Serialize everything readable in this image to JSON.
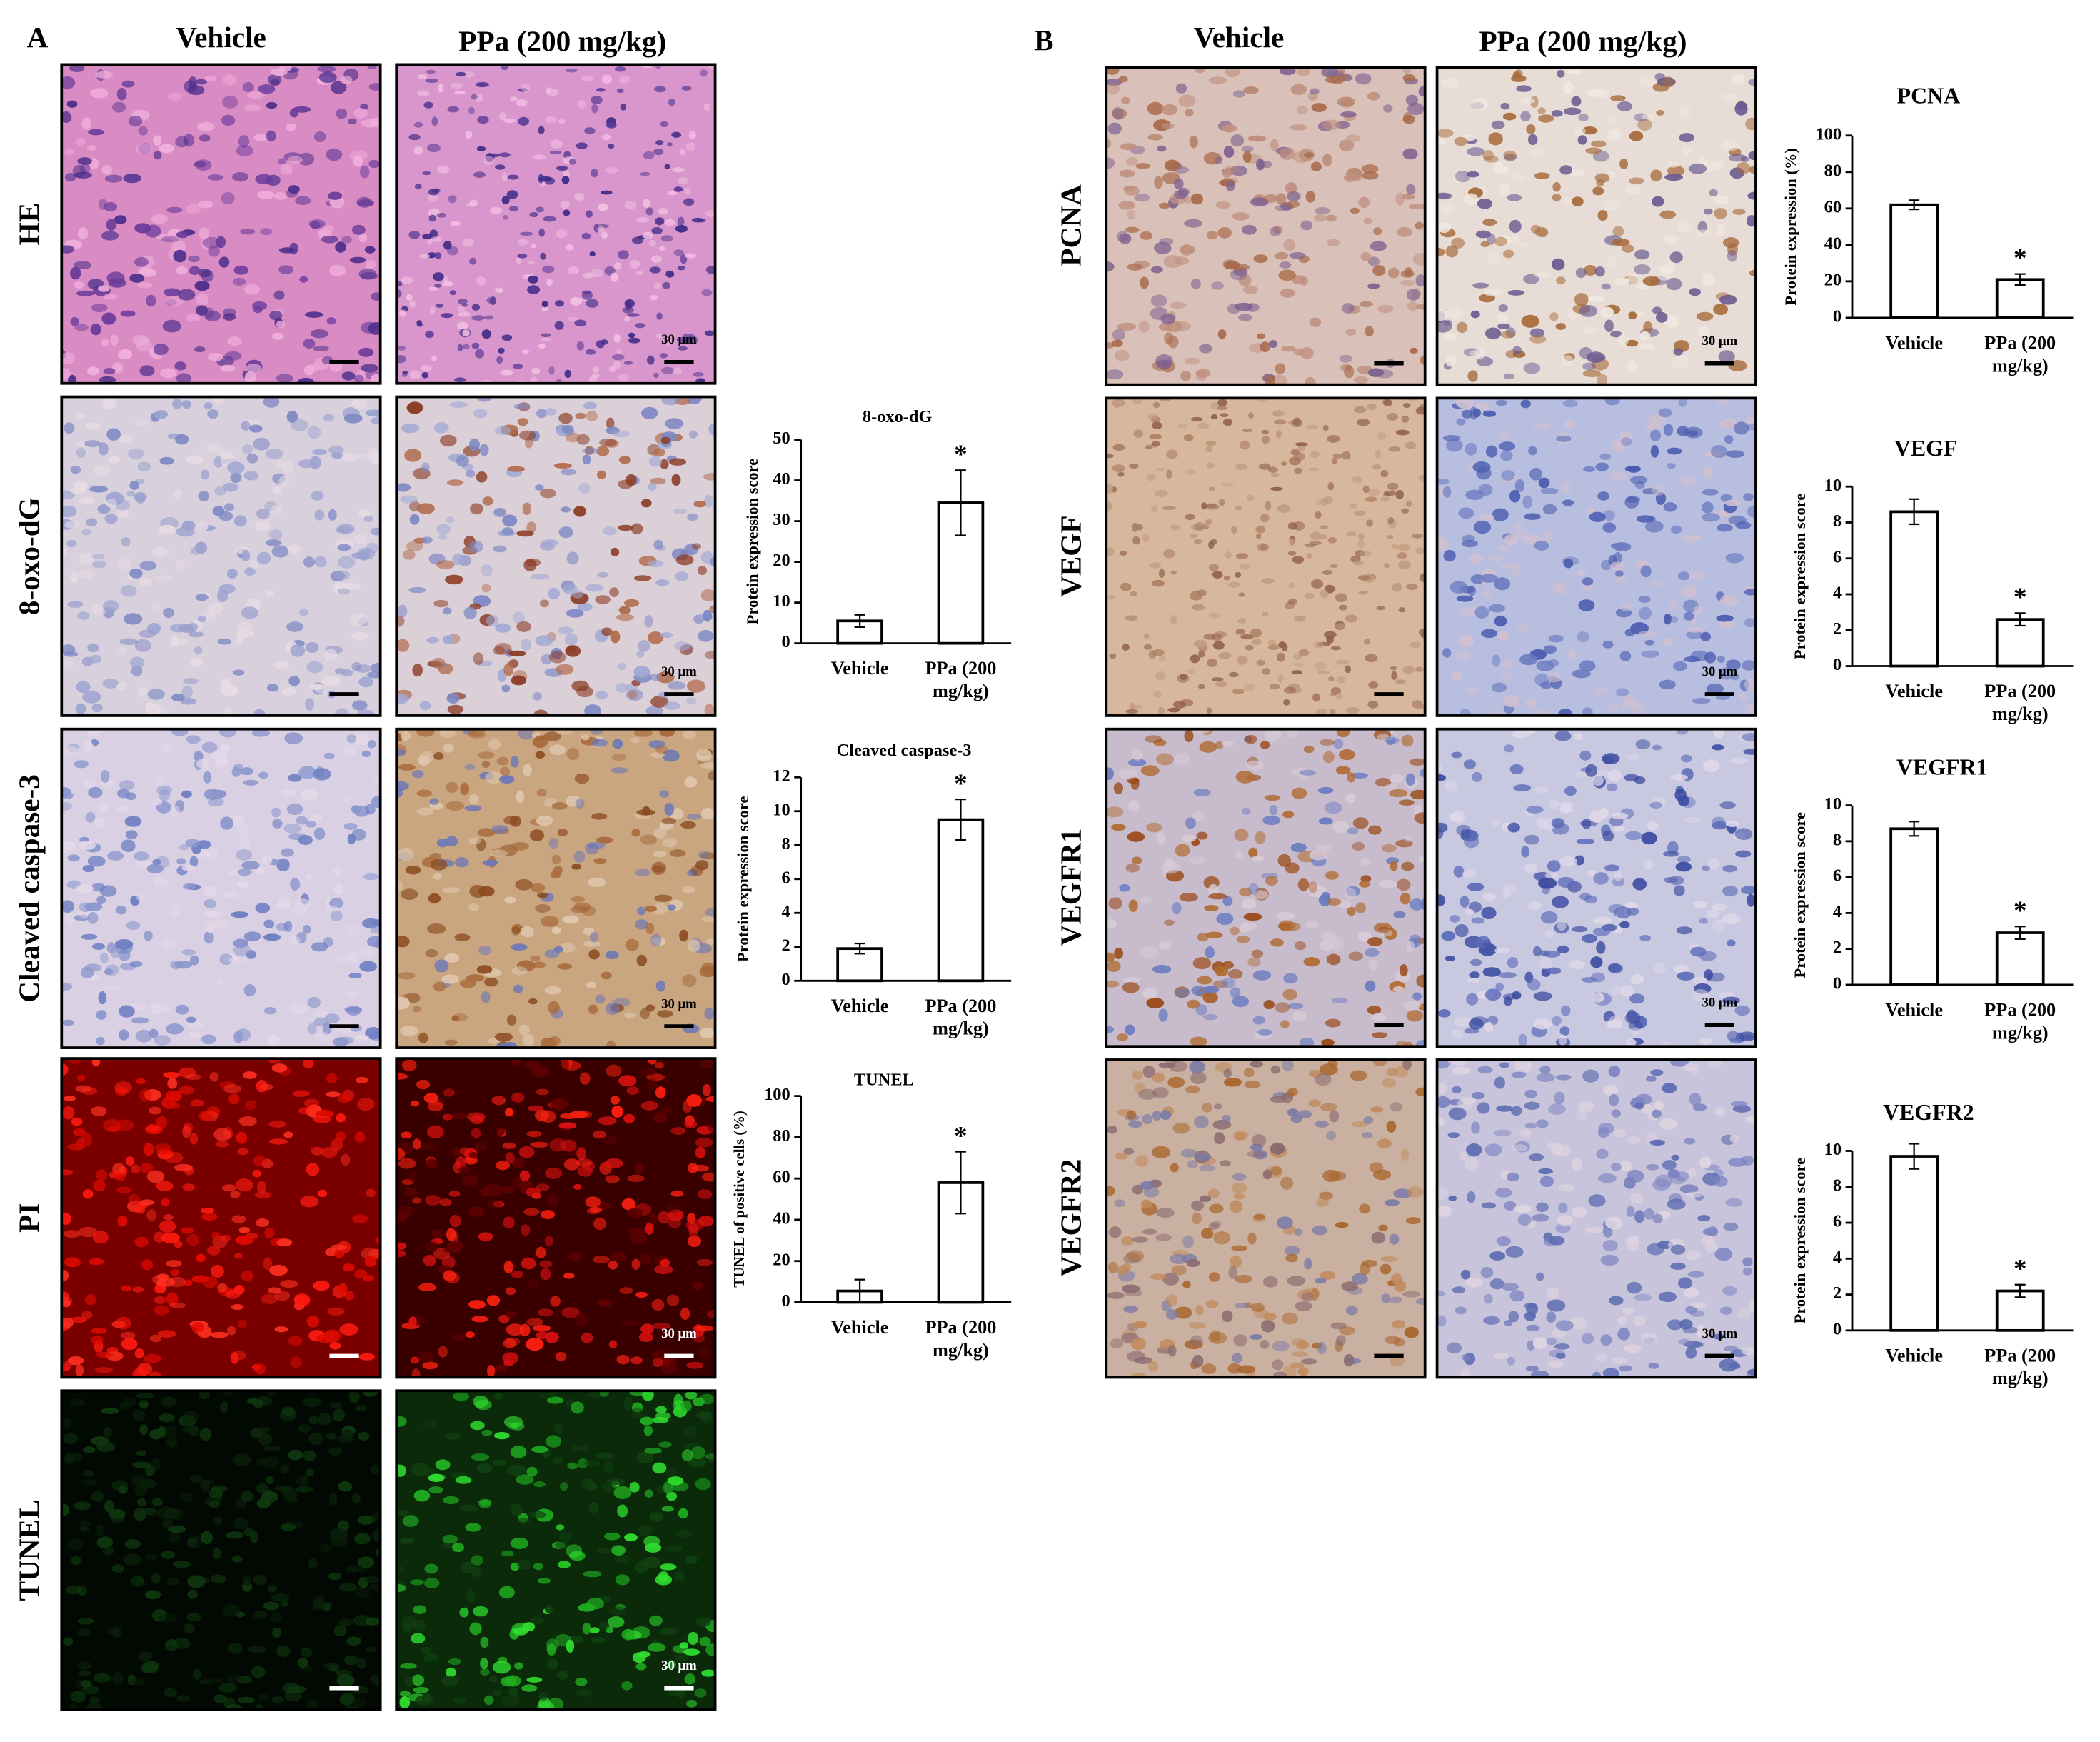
{
  "panel_a": {
    "label": "A",
    "columns": [
      "Vehicle",
      "PPa (200 mg/kg)"
    ],
    "rows": [
      "HE",
      "8-oxo-dG",
      "Cleaved caspase-3",
      "PI",
      "TUNEL"
    ]
  },
  "panel_b": {
    "label": "B",
    "columns": [
      "Vehicle",
      "PPa (200 mg/kg)"
    ],
    "rows": [
      "PCNA",
      "VEGF",
      "VEGFR1",
      "VEGFR2"
    ]
  },
  "scale_bar_label": "30 μm",
  "chart_data": [
    {
      "type": "bar",
      "title": "8-oxo-dG",
      "y_label": "Protein expression score",
      "categories": [
        "Vehicle",
        "PPa (200 mg/kg)"
      ],
      "values": [
        5.5,
        34.5
      ],
      "errors": [
        1.5,
        8
      ],
      "color": "#ffffff",
      "annotation": "*",
      "ylim": [
        0,
        50
      ],
      "yticks": [
        0,
        10,
        20,
        30,
        40,
        50
      ]
    },
    {
      "type": "bar",
      "title": "Cleaved caspase-3",
      "y_label": "Protein expression score",
      "categories": [
        "Vehicle",
        "PPa (200 mg/kg)"
      ],
      "values": [
        1.9,
        9.5
      ],
      "errors": [
        0.3,
        1.2
      ],
      "color": "#ffffff",
      "annotation": "*",
      "ylim": [
        0,
        12
      ],
      "yticks": [
        0,
        2,
        4,
        6,
        8,
        10,
        12
      ]
    },
    {
      "type": "bar",
      "title": "TUNEL",
      "y_label": "TUNEL of positive cells (%)",
      "categories": [
        "Vehicle",
        "PPa (200 mg/kg)"
      ],
      "values": [
        5.5,
        58
      ],
      "errors": [
        5.5,
        15
      ],
      "color": "#ffffff",
      "annotation": "*",
      "ylim": [
        0,
        100
      ],
      "yticks": [
        0,
        20,
        40,
        60,
        80,
        100
      ]
    },
    {
      "type": "bar",
      "title": "PCNA",
      "y_label": "Protein expression (%)",
      "categories": [
        "Vehicle",
        "PPa (200 mg/kg)"
      ],
      "values": [
        62,
        21
      ],
      "errors": [
        2.5,
        3
      ],
      "color": "#ffffff",
      "annotation": "*",
      "ylim": [
        0,
        100
      ],
      "yticks": [
        0,
        20,
        40,
        60,
        80,
        100
      ]
    },
    {
      "type": "bar",
      "title": "VEGF",
      "y_label": "Protein expression score",
      "categories": [
        "Vehicle",
        "PPa (200 mg/kg)"
      ],
      "values": [
        8.6,
        2.6
      ],
      "errors": [
        0.7,
        0.35
      ],
      "color": "#ffffff",
      "annotation": "*",
      "ylim": [
        0,
        10
      ],
      "yticks": [
        0,
        2,
        4,
        6,
        8,
        10
      ]
    },
    {
      "type": "bar",
      "title": "VEGFR1",
      "y_label": "Protein expression score",
      "categories": [
        "Vehicle",
        "PPa (200 mg/kg)"
      ],
      "values": [
        8.7,
        2.9
      ],
      "errors": [
        0.4,
        0.35
      ],
      "color": "#ffffff",
      "annotation": "*",
      "ylim": [
        0,
        10
      ],
      "yticks": [
        0,
        2,
        4,
        6,
        8,
        10
      ]
    },
    {
      "type": "bar",
      "title": "VEGFR2",
      "y_label": "Protein expression score",
      "categories": [
        "Vehicle",
        "PPa (200 mg/kg)"
      ],
      "values": [
        9.7,
        2.2
      ],
      "errors": [
        0.7,
        0.35
      ],
      "color": "#ffffff",
      "annotation": "*",
      "ylim": [
        0,
        10
      ],
      "yticks": [
        0,
        2,
        4,
        6,
        8,
        10
      ]
    }
  ]
}
